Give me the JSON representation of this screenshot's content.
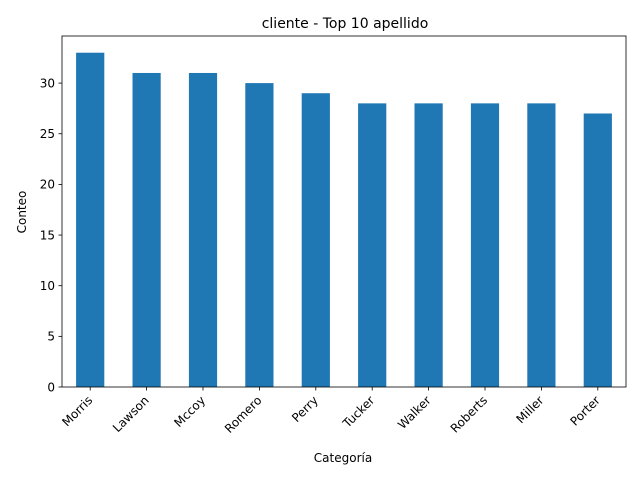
{
  "chart_data": {
    "type": "bar",
    "title": "cliente - Top 10 apellido",
    "xlabel": "Categoría",
    "ylabel": "Conteo",
    "categories": [
      "Morris",
      "Lawson",
      "Mccoy",
      "Romero",
      "Perry",
      "Tucker",
      "Walker",
      "Roberts",
      "Miller",
      "Porter"
    ],
    "values": [
      33,
      31,
      31,
      30,
      29,
      28,
      28,
      28,
      28,
      27
    ],
    "ylim": [
      0,
      34.65
    ],
    "yticks": [
      0,
      5,
      10,
      15,
      20,
      25,
      30
    ],
    "grid": false,
    "bar_color": "#1f77b4"
  }
}
